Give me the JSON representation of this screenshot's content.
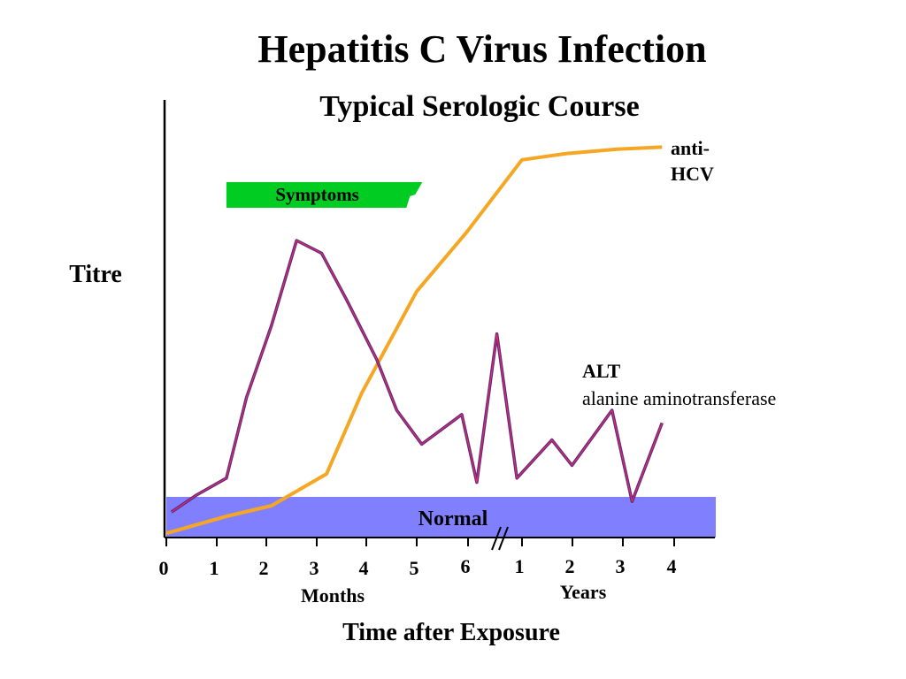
{
  "chart_data": {
    "type": "line",
    "title": "Hepatitis C Virus Infection",
    "subtitle": "Typical Serologic Course",
    "ylabel": "Titre",
    "xlabel": "Time after Exposure",
    "months_label": "Months",
    "years_label": "Years",
    "month_ticks": [
      "0",
      "1",
      "2",
      "3",
      "4",
      "5",
      "6"
    ],
    "year_ticks": [
      "1",
      "2",
      "3",
      "4"
    ],
    "normal_label": "Normal",
    "symptoms_label": "Symptoms",
    "symptoms_range": [
      1.5,
      5.2
    ],
    "ylim": [
      0,
      100
    ],
    "series": [
      {
        "name": "anti-HCV",
        "label_lines": [
          "anti-",
          "HCV"
        ],
        "color": "#f5a623",
        "points": [
          [
            0,
            1
          ],
          [
            1.2,
            5
          ],
          [
            2.1,
            7.5
          ],
          [
            3.2,
            15
          ],
          [
            3.9,
            34
          ],
          [
            5,
            58
          ],
          [
            6,
            72
          ],
          [
            7.1,
            89
          ],
          [
            8,
            90.5
          ],
          [
            9,
            91.5
          ],
          [
            9.9,
            92
          ]
        ]
      },
      {
        "name": "ALT",
        "label_lines": [
          "ALT",
          "alanine aminotransferase"
        ],
        "color": "#5b2a86",
        "points": [
          [
            0.1,
            6
          ],
          [
            0.6,
            10
          ],
          [
            1.2,
            14
          ],
          [
            1.6,
            33
          ],
          [
            2.1,
            50
          ],
          [
            2.6,
            70
          ],
          [
            3.1,
            67
          ],
          [
            3.6,
            56
          ],
          [
            4.2,
            42
          ],
          [
            4.6,
            30
          ],
          [
            5.1,
            22
          ],
          [
            5.9,
            29
          ],
          [
            6.2,
            13
          ],
          [
            6.6,
            48
          ],
          [
            7,
            14
          ],
          [
            7.7,
            23
          ],
          [
            8.1,
            17
          ],
          [
            8.9,
            30
          ],
          [
            9.3,
            8.5
          ],
          [
            9.9,
            27
          ]
        ]
      }
    ]
  },
  "colors": {
    "normal_band": "#8080ff",
    "symptoms_bar": "#00cc22",
    "axis": "#000000"
  }
}
